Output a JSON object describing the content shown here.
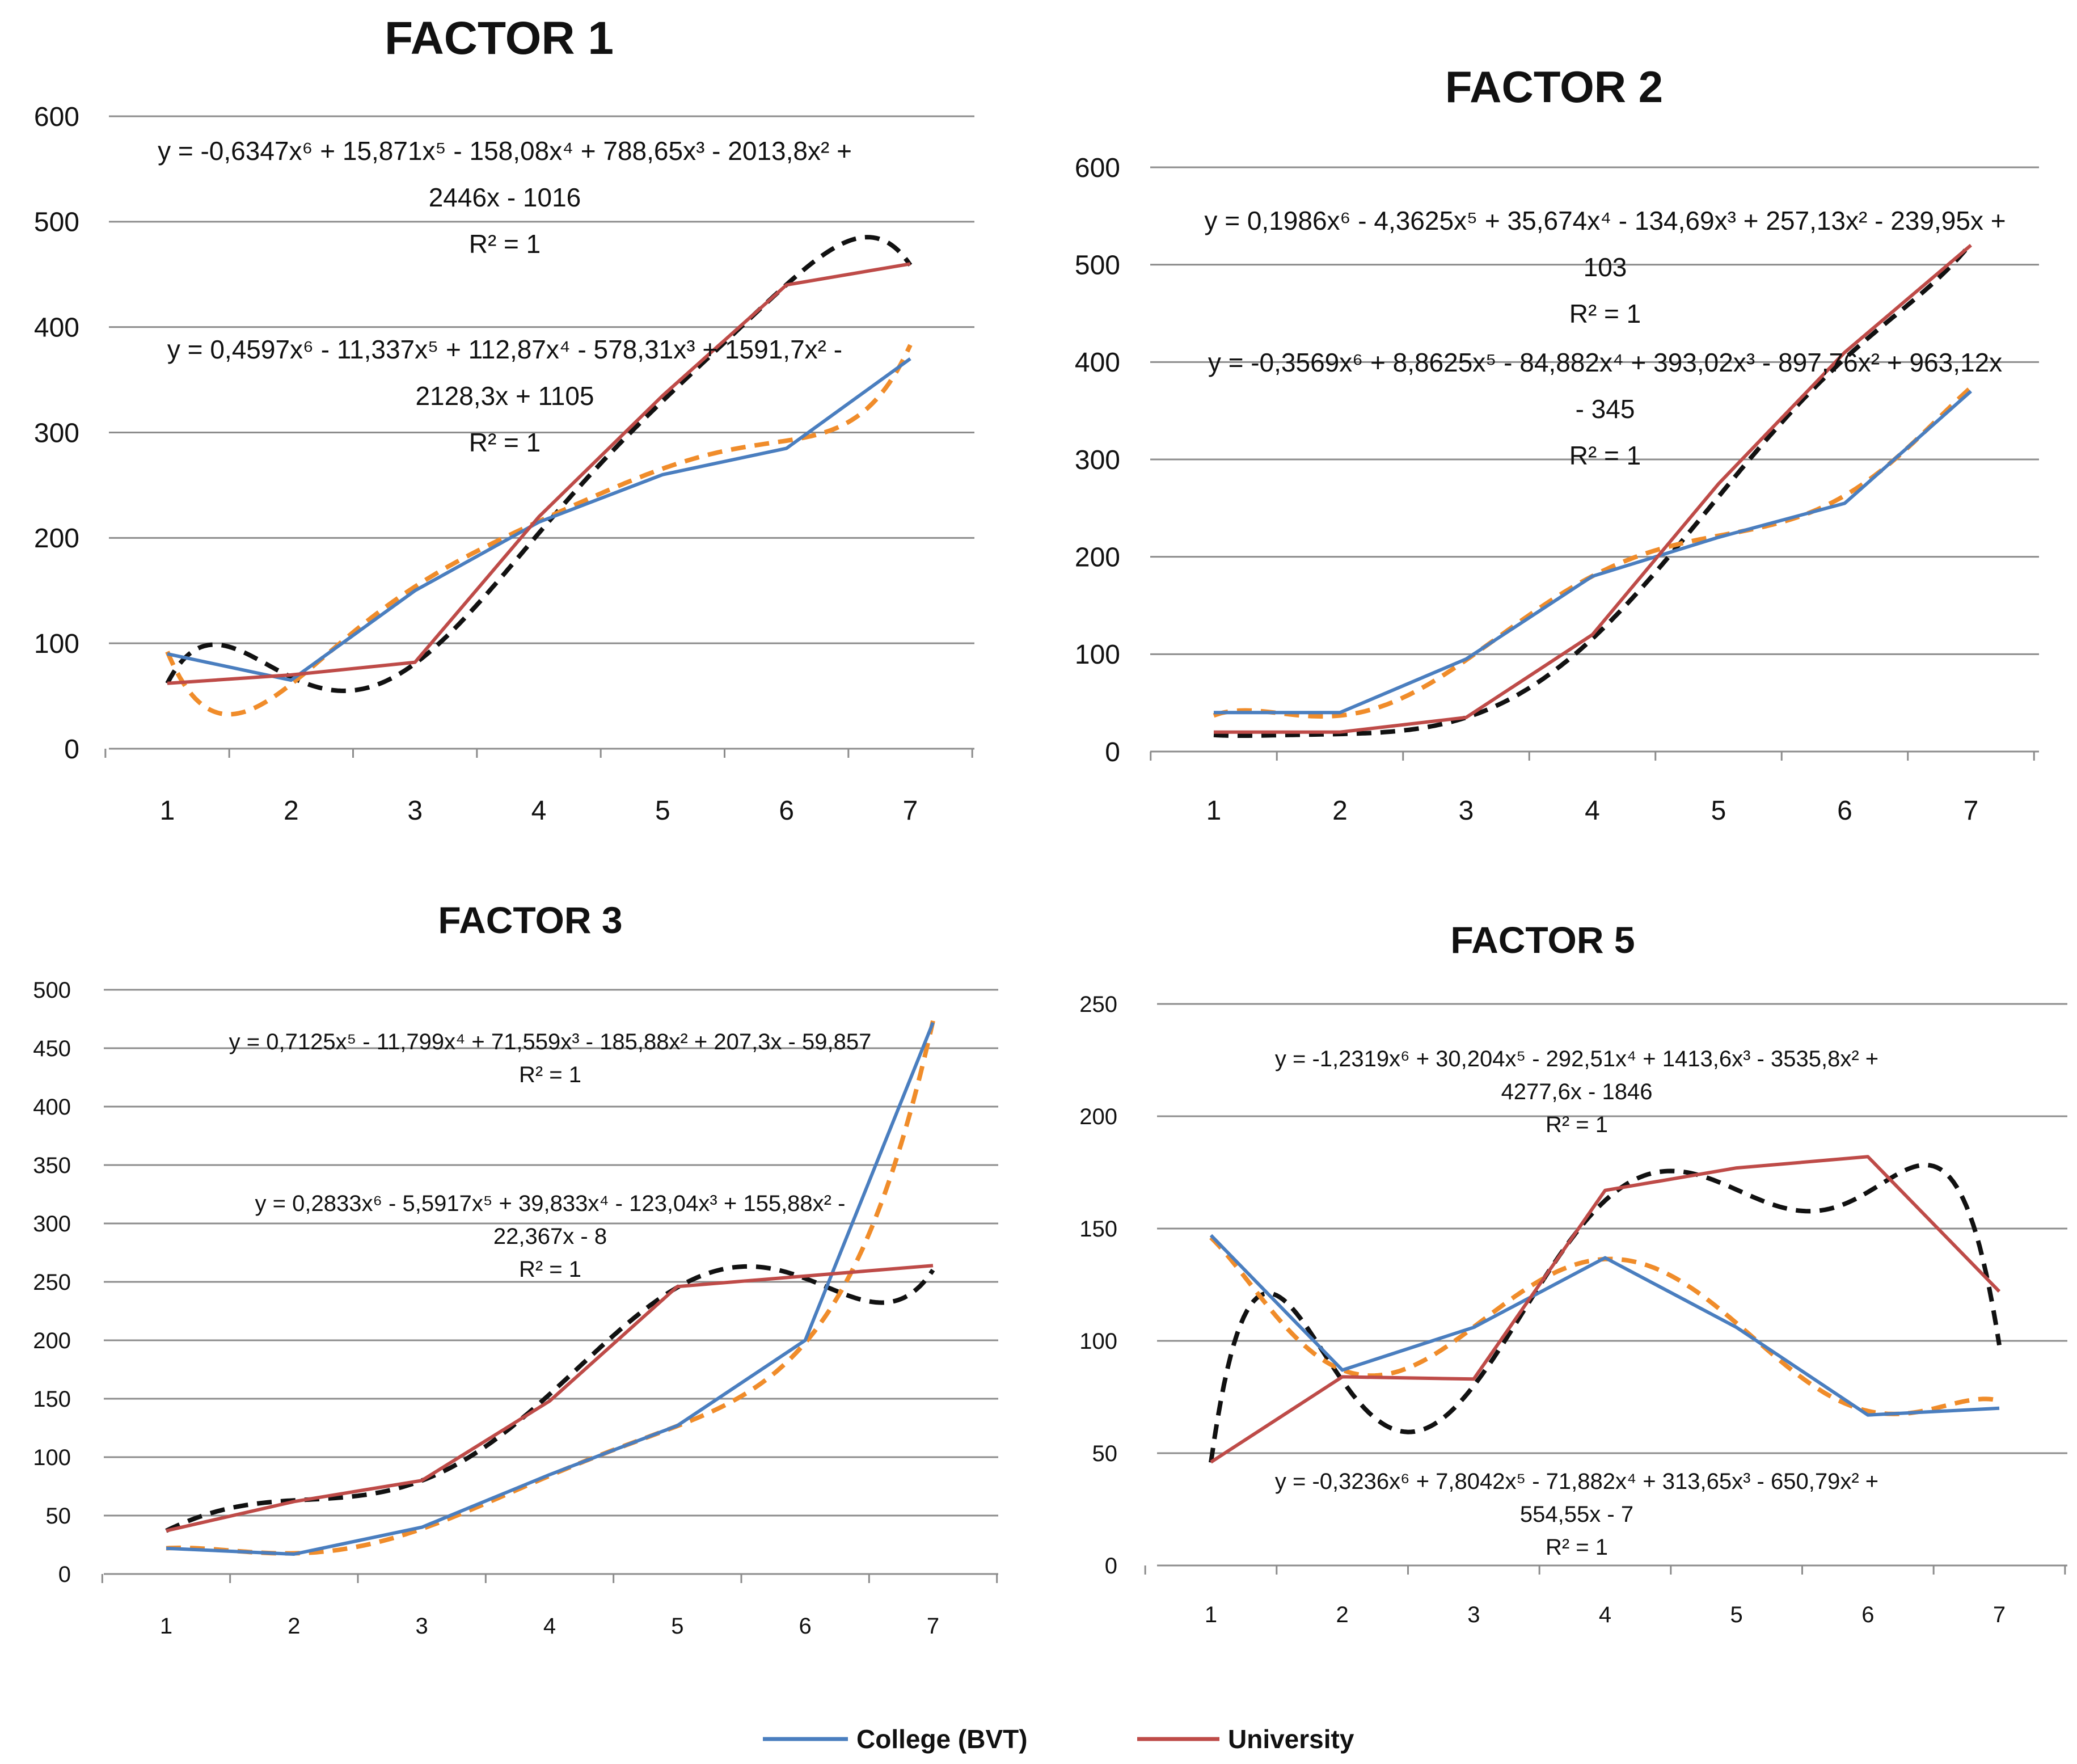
{
  "colors": {
    "college": "#4a7ebf",
    "university": "#be4b48",
    "college_trend": "#f08c2a",
    "university_trend": "#111111",
    "grid": "#8c8c8c"
  },
  "legend": {
    "college": "College (BVT)",
    "university": "University"
  },
  "chart_data": [
    {
      "type": "line",
      "title": "FACTOR  1",
      "x": [
        1,
        2,
        3,
        4,
        5,
        6,
        7
      ],
      "ylim": [
        0,
        600
      ],
      "yticks": [
        0,
        100,
        200,
        300,
        400,
        500,
        600
      ],
      "series": [
        {
          "name": "College (BVT)",
          "values": [
            90,
            65,
            150,
            215,
            260,
            285,
            370
          ]
        },
        {
          "name": "University",
          "values": [
            62,
            70,
            82,
            220,
            335,
            440,
            460
          ]
        }
      ],
      "trendlines": [
        {
          "series": "University",
          "coeffs": [
            -0.6347,
            15.871,
            -158.08,
            788.65,
            -2013.8,
            2446,
            -1016
          ],
          "lines": [
            "y = -0,6347x⁶ + 15,871x⁵ - 158,08x⁴ + 788,65x³ - 2013,8x² +",
            "2446x - 1016",
            "R² = 1"
          ]
        },
        {
          "series": "College (BVT)",
          "coeffs": [
            0.4597,
            -11.337,
            112.87,
            -578.31,
            1591.7,
            -2128.3,
            1105
          ],
          "lines": [
            "y = 0,4597x⁶ - 11,337x⁵ + 112,87x⁴ - 578,31x³ + 1591,7x² -",
            "2128,3x + 1105",
            "R² = 1"
          ]
        }
      ]
    },
    {
      "type": "line",
      "title": "FACTOR 2",
      "x": [
        1,
        2,
        3,
        4,
        5,
        6,
        7
      ],
      "ylim": [
        0,
        600
      ],
      "yticks": [
        0,
        100,
        200,
        300,
        400,
        500,
        600
      ],
      "series": [
        {
          "name": "College (BVT)",
          "values": [
            40,
            40,
            95,
            180,
            220,
            255,
            370
          ]
        },
        {
          "name": "University",
          "values": [
            20,
            20,
            35,
            120,
            275,
            410,
            520
          ]
        }
      ],
      "trendlines": [
        {
          "series": "University",
          "coeffs": [
            0.1986,
            -4.3625,
            35.674,
            -134.69,
            257.13,
            -239.95,
            103
          ],
          "lines": [
            "y = 0,1986x⁶ - 4,3625x⁵ + 35,674x⁴ - 134,69x³ + 257,13x² - 239,95x +",
            "103",
            "R² = 1"
          ]
        },
        {
          "series": "College (BVT)",
          "coeffs": [
            -0.3569,
            8.8625,
            -84.882,
            393.02,
            -897.76,
            963.12,
            -345
          ],
          "lines": [
            "y = -0,3569x⁶ + 8,8625x⁵ - 84,882x⁴ + 393,02x³ - 897,76x² + 963,12x",
            "- 345",
            "R² = 1"
          ]
        }
      ]
    },
    {
      "type": "line",
      "title": "FACTOR 3",
      "x": [
        1,
        2,
        3,
        4,
        5,
        6,
        7
      ],
      "ylim": [
        0,
        500
      ],
      "yticks": [
        0,
        50,
        100,
        150,
        200,
        250,
        300,
        350,
        400,
        450,
        500
      ],
      "series": [
        {
          "name": "College (BVT)",
          "values": [
            22,
            17,
            40,
            85,
            127,
            200,
            472
          ]
        },
        {
          "name": "University",
          "values": [
            37,
            62,
            80,
            148,
            246,
            255,
            264
          ]
        }
      ],
      "trendlines": [
        {
          "series": "College (BVT)",
          "coeffs": [
            0.7125,
            -11.799,
            71.559,
            -185.88,
            207.3,
            -59.857
          ],
          "lines": [
            "y = 0,7125x⁵ - 11,799x⁴ + 71,559x³ - 185,88x² + 207,3x - 59,857",
            "R² = 1"
          ]
        },
        {
          "series": "University",
          "coeffs": [
            0.2833,
            -5.5917,
            39.833,
            -123.04,
            155.88,
            -22.367,
            -8
          ],
          "lines": [
            "y = 0,2833x⁶ - 5,5917x⁵ + 39,833x⁴ - 123,04x³ + 155,88x² -",
            "22,367x - 8",
            "R² = 1"
          ]
        }
      ]
    },
    {
      "type": "line",
      "title": "FACTOR 5",
      "x": [
        1,
        2,
        3,
        4,
        5,
        6,
        7
      ],
      "ylim": [
        0,
        250
      ],
      "yticks": [
        0,
        50,
        100,
        150,
        200,
        250
      ],
      "series": [
        {
          "name": "College (BVT)",
          "values": [
            147,
            87,
            106,
            137,
            106,
            67,
            70
          ]
        },
        {
          "name": "University",
          "values": [
            46,
            84,
            83,
            167,
            177,
            182,
            122
          ]
        }
      ],
      "trendlines": [
        {
          "series": "University",
          "coeffs": [
            -1.2319,
            30.204,
            -292.51,
            1413.6,
            -3535.8,
            4277.6,
            -1846
          ],
          "lines": [
            "y = -1,2319x⁶ + 30,204x⁵ - 292,51x⁴ + 1413,6x³ - 3535,8x² +",
            "4277,6x - 1846",
            "R² = 1"
          ]
        },
        {
          "series": "College (BVT)",
          "coeffs": [
            -0.3236,
            7.8042,
            -71.882,
            313.65,
            -650.79,
            554.55,
            -7
          ],
          "lines": [
            "y = -0,3236x⁶ + 7,8042x⁵ - 71,882x⁴ + 313,65x³ - 650,79x² +",
            "554,55x - 7",
            "R² = 1"
          ]
        }
      ]
    }
  ]
}
